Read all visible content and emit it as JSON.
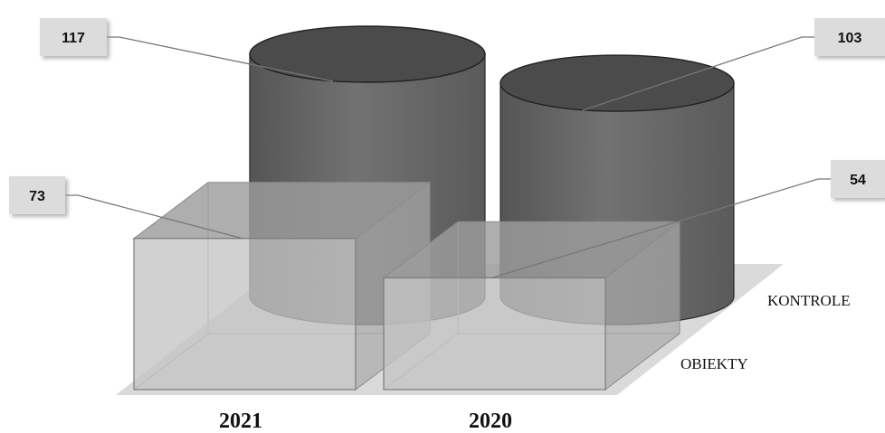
{
  "chart_data": {
    "type": "bar",
    "subtype": "3d-grouped",
    "categories": [
      "2021",
      "2020"
    ],
    "series": [
      {
        "name": "KONTROLE",
        "shape": "cylinder",
        "values": [
          117,
          103
        ],
        "color": "#6b6b6b"
      },
      {
        "name": "OBIEKTY",
        "shape": "box",
        "values": [
          73,
          54
        ],
        "color": "#b8b8b8"
      }
    ],
    "title": "",
    "xlabel": "",
    "ylabel": "",
    "ylim": [
      0,
      117
    ],
    "grid": false,
    "legend": "none",
    "data_labels": true
  }
}
